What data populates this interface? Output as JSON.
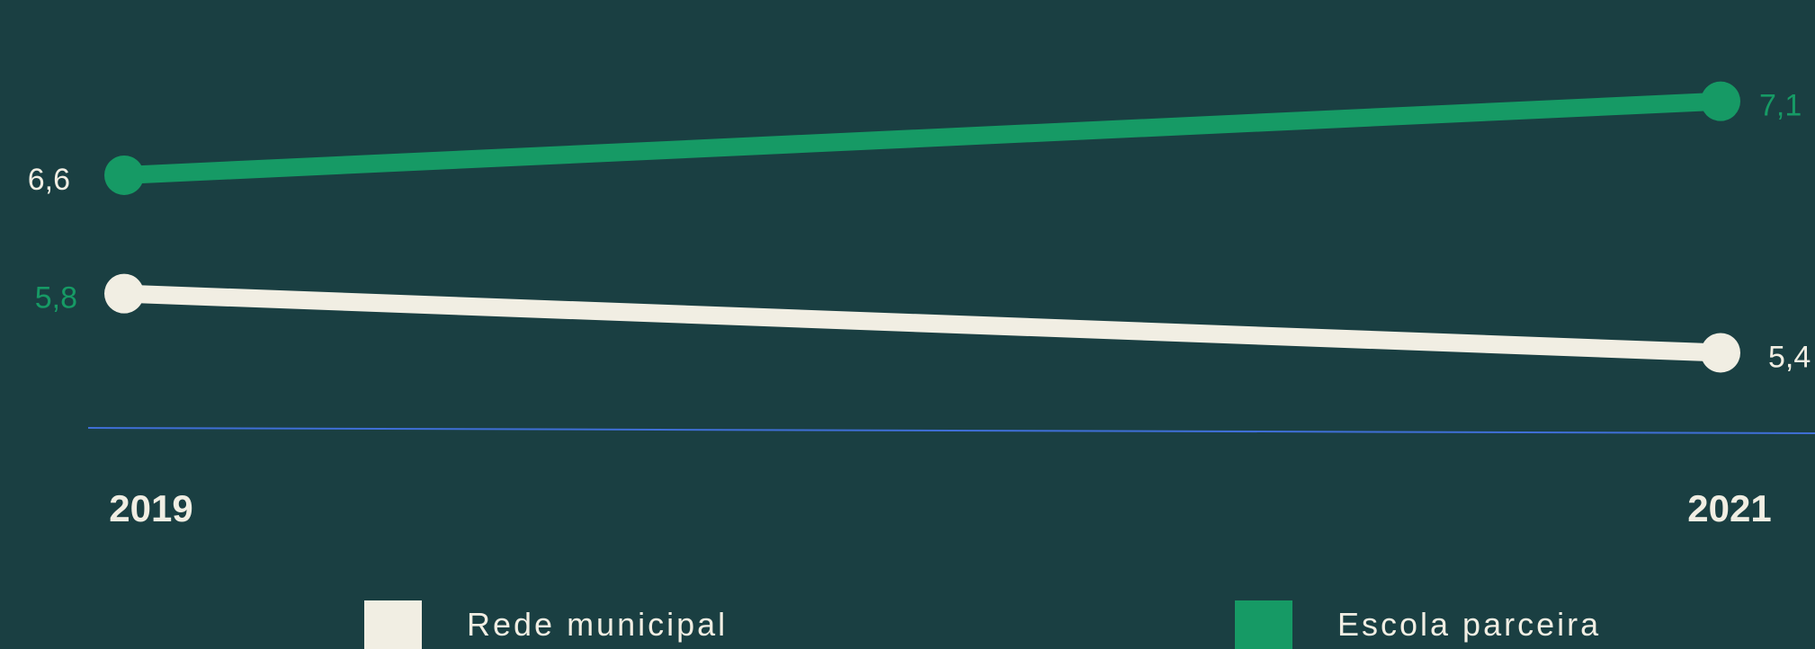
{
  "chart_data": {
    "type": "line",
    "x": [
      "2019",
      "2021"
    ],
    "series": [
      {
        "name": "Escola parceira",
        "values": [
          6.6,
          7.1
        ],
        "labels": [
          "6,6",
          "7,1"
        ],
        "color": "#169a65",
        "label_colors": [
          "#f1eee3",
          "#169a65"
        ]
      },
      {
        "name": "Rede municipal",
        "values": [
          5.8,
          5.4
        ],
        "labels": [
          "5,8",
          "5,4"
        ],
        "color": "#f1eee3",
        "label_colors": [
          "#169a65",
          "#f1eee3"
        ]
      }
    ],
    "title": "",
    "xlabel": "",
    "ylabel": "",
    "ylim": [
      5.0,
      7.2
    ],
    "grid": false,
    "legend_position": "bottom",
    "colors": {
      "background": "#1a3f42",
      "axis_line": "#3f6fd6"
    }
  },
  "legend": {
    "items": [
      {
        "label": "Rede municipal",
        "color": "#f1eee3"
      },
      {
        "label": "Escola parceira",
        "color": "#169a65"
      }
    ]
  }
}
